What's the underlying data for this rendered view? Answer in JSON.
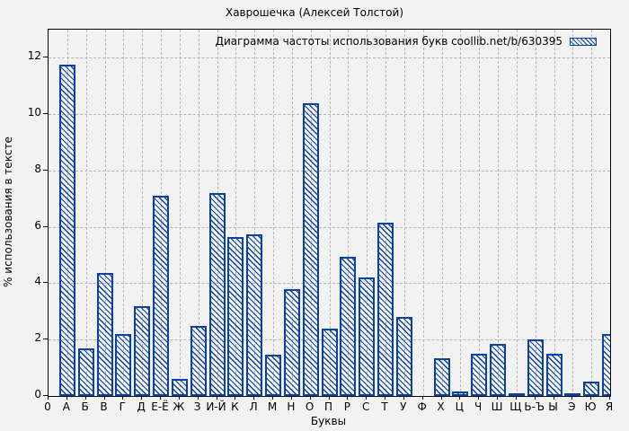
{
  "chart_data": {
    "type": "bar",
    "title": "Хаврошечка (Алексей Толстой)",
    "legend": "Диаграмма частоты использования букв coollib.net/b/630395",
    "legend_position": "top-right-inside",
    "xlabel": "Буквы",
    "ylabel": "% использования в тексте",
    "x_origin_label": "0",
    "categories": [
      "А",
      "Б",
      "В",
      "Г",
      "Д",
      "Е-Ё",
      "Ж",
      "З",
      "И-Й",
      "К",
      "Л",
      "М",
      "Н",
      "О",
      "П",
      "Р",
      "С",
      "Т",
      "У",
      "Ф",
      "Х",
      "Ц",
      "Ч",
      "Ш",
      "Щ",
      "Ь-Ъ",
      "Ы",
      "Э",
      "Ю",
      "Я"
    ],
    "values": [
      11.75,
      1.7,
      4.35,
      2.2,
      3.2,
      7.1,
      0.6,
      2.5,
      7.2,
      5.65,
      5.75,
      1.45,
      3.8,
      10.4,
      2.4,
      4.95,
      4.2,
      6.15,
      2.8,
      0,
      1.35,
      0.15,
      1.5,
      1.85,
      0.1,
      2.0,
      1.5,
      0.05,
      0.5,
      2.2
    ],
    "yticks": [
      0,
      2,
      4,
      6,
      8,
      10,
      12
    ],
    "ylim": [
      0,
      13
    ],
    "grid": true,
    "colors": {
      "bar_edge": "#0b42a0",
      "bar_hatch": "#0b42a0",
      "background": "#f2f2f2",
      "grid": "#b6b6b6",
      "frame": "#000000",
      "text": "#000000"
    }
  }
}
